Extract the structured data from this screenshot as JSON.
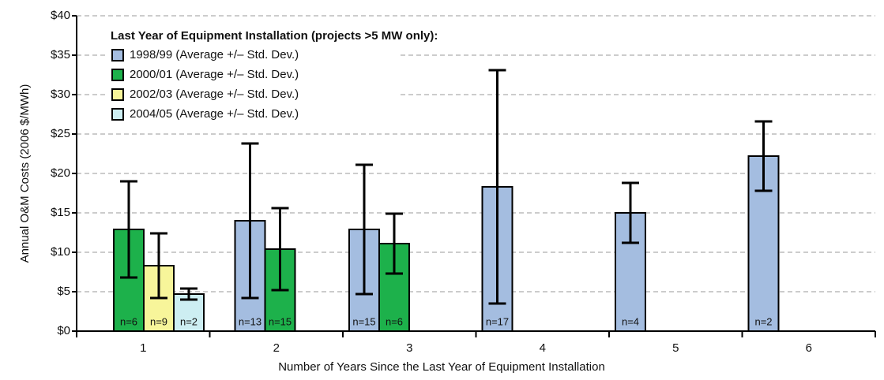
{
  "chart_data": {
    "type": "bar",
    "legend_title": "Last Year of Equipment Installation (projects >5 MW only):",
    "xlabel": "Number of Years Since the Last Year of Equipment Installation",
    "ylabel": "Annual O&M Costs (2006 $/MWh)",
    "categories": [
      "1",
      "2",
      "3",
      "4",
      "5",
      "6"
    ],
    "series": [
      {
        "name": "1998/99 (Average +/– Std. Dev.)",
        "color": "#a4bde0",
        "values": [
          null,
          14.0,
          12.9,
          18.3,
          15.0,
          22.2
        ],
        "errors": [
          null,
          9.8,
          8.2,
          14.8,
          3.8,
          4.4
        ],
        "n_labels": [
          null,
          "n=13",
          "n=15",
          "n=17",
          "n=4",
          "n=2"
        ]
      },
      {
        "name": "2000/01 (Average +/– Std. Dev.)",
        "color": "#1db14b",
        "values": [
          12.9,
          10.4,
          11.1,
          null,
          null,
          null
        ],
        "errors": [
          6.1,
          5.2,
          3.8,
          null,
          null,
          null
        ],
        "n_labels": [
          "n=6",
          "n=15",
          "n=6",
          null,
          null,
          null
        ]
      },
      {
        "name": "2002/03 (Average +/– Std. Dev.)",
        "color": "#f7f59a",
        "values": [
          8.3,
          null,
          null,
          null,
          null,
          null
        ],
        "errors": [
          4.1,
          null,
          null,
          null,
          null,
          null
        ],
        "n_labels": [
          "n=9",
          null,
          null,
          null,
          null,
          null
        ]
      },
      {
        "name": "2004/05 (Average +/– Std. Dev.)",
        "color": "#cdeef2",
        "values": [
          4.7,
          null,
          null,
          null,
          null,
          null
        ],
        "errors": [
          0.7,
          null,
          null,
          null,
          null,
          null
        ],
        "n_labels": [
          "n=2",
          null,
          null,
          null,
          null,
          null
        ]
      }
    ],
    "ylim": [
      0,
      40
    ],
    "yticks": [
      {
        "value": 0,
        "label": "$0"
      },
      {
        "value": 5,
        "label": "$5"
      },
      {
        "value": 10,
        "label": "$10"
      },
      {
        "value": 15,
        "label": "$15"
      },
      {
        "value": 20,
        "label": "$20"
      },
      {
        "value": 25,
        "label": "$25"
      },
      {
        "value": 30,
        "label": "$30"
      },
      {
        "value": 35,
        "label": "$35"
      },
      {
        "value": 40,
        "label": "$40"
      }
    ],
    "grid": true,
    "legend": "upper left"
  }
}
